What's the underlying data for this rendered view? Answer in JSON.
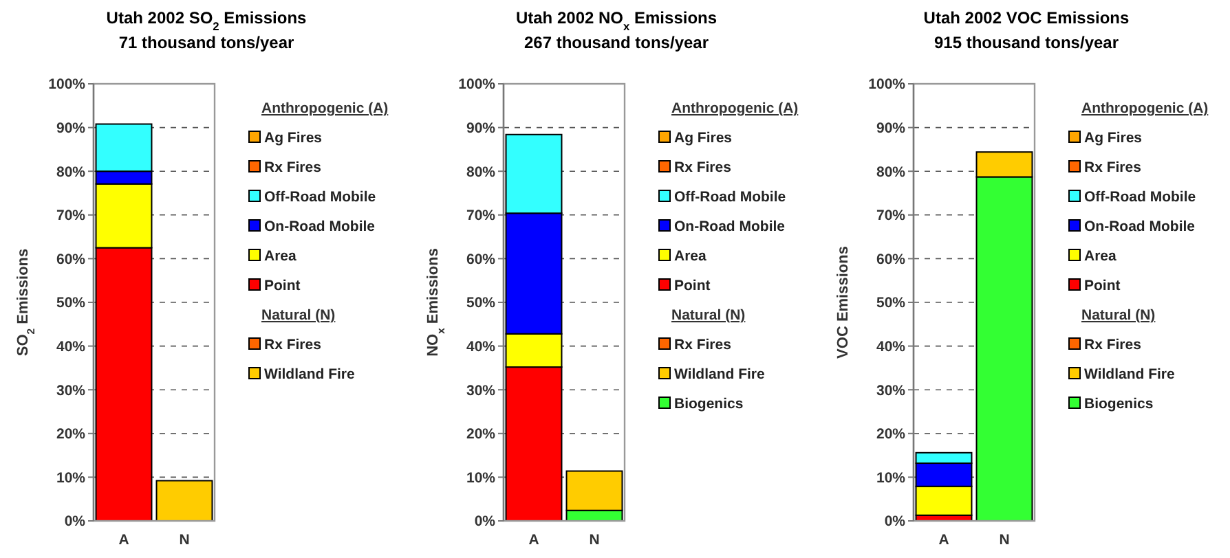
{
  "chart_data": [
    {
      "type": "bar",
      "title": "Utah 2002 SO$_{2}$ Emissions",
      "subtitle": "71 thousand tons/year",
      "ylabel": "SO$_{2}$ Emissions",
      "categories": [
        "A",
        "N"
      ],
      "stacked": true,
      "ylim": [
        0,
        100
      ],
      "yticks": [
        {
          "value": 0,
          "label": "0%"
        },
        {
          "value": 10,
          "label": "10%"
        },
        {
          "value": 20,
          "label": "20%"
        },
        {
          "value": 30,
          "label": "30%"
        },
        {
          "value": 40,
          "label": "40%"
        },
        {
          "value": 50,
          "label": "50%"
        },
        {
          "value": 60,
          "label": "60%"
        },
        {
          "value": 70,
          "label": "70%"
        },
        {
          "value": 80,
          "label": "80%"
        },
        {
          "value": 90,
          "label": "90%"
        },
        {
          "value": 100,
          "label": "100%"
        }
      ],
      "grid": "y",
      "legend": "right",
      "annotations": [
        "Anthropogenic (A)",
        "Natural (N)"
      ],
      "series": [
        {
          "name": "Point",
          "color": "#ff0000",
          "values": [
            62.5,
            null
          ]
        },
        {
          "name": "Area",
          "color": "#ffff00",
          "values": [
            14.6,
            null
          ]
        },
        {
          "name": "On-Road Mobile",
          "color": "#0000ff",
          "values": [
            2.9,
            null
          ]
        },
        {
          "name": "Off-Road Mobile",
          "color": "#33ffff",
          "values": [
            10.8,
            null
          ]
        },
        {
          "name": "Rx Fires",
          "color": "#ff6600",
          "values": [
            0,
            null
          ]
        },
        {
          "name": "Ag Fires",
          "color": "#ffa500",
          "values": [
            0,
            null
          ]
        },
        {
          "name": "Wildland Fire",
          "color": "#ffcc00",
          "values": [
            null,
            9.2
          ]
        },
        {
          "name": "Rx Fires",
          "color": "#ff6600",
          "values": [
            null,
            0
          ]
        }
      ]
    },
    {
      "type": "bar",
      "title": "Utah 2002 NO$_{x}$ Emissions",
      "subtitle": "267 thousand tons/year",
      "ylabel": "NO$_{x}$ Emissions",
      "categories": [
        "A",
        "N"
      ],
      "stacked": true,
      "ylim": [
        0,
        100
      ],
      "yticks": [
        {
          "value": 0,
          "label": "0%"
        },
        {
          "value": 10,
          "label": "10%"
        },
        {
          "value": 20,
          "label": "20%"
        },
        {
          "value": 30,
          "label": "30%"
        },
        {
          "value": 40,
          "label": "40%"
        },
        {
          "value": 50,
          "label": "50%"
        },
        {
          "value": 60,
          "label": "60%"
        },
        {
          "value": 70,
          "label": "70%"
        },
        {
          "value": 80,
          "label": "80%"
        },
        {
          "value": 90,
          "label": "90%"
        },
        {
          "value": 100,
          "label": "100%"
        }
      ],
      "grid": "y",
      "legend": "right",
      "annotations": [
        "Anthropogenic (A)",
        "Natural (N)"
      ],
      "series": [
        {
          "name": "Point",
          "color": "#ff0000",
          "values": [
            35.2,
            null
          ]
        },
        {
          "name": "Area",
          "color": "#ffff00",
          "values": [
            7.6,
            null
          ]
        },
        {
          "name": "On-Road Mobile",
          "color": "#0000ff",
          "values": [
            27.6,
            null
          ]
        },
        {
          "name": "Off-Road Mobile",
          "color": "#33ffff",
          "values": [
            18.0,
            null
          ]
        },
        {
          "name": "Rx Fires",
          "color": "#ff6600",
          "values": [
            0,
            null
          ]
        },
        {
          "name": "Ag Fires",
          "color": "#ffa500",
          "values": [
            0,
            null
          ]
        },
        {
          "name": "Biogenics",
          "color": "#33ff33",
          "values": [
            null,
            2.4
          ]
        },
        {
          "name": "Wildland Fire",
          "color": "#ffcc00",
          "values": [
            null,
            9.0
          ]
        },
        {
          "name": "Rx Fires",
          "color": "#ff6600",
          "values": [
            null,
            0
          ]
        }
      ]
    },
    {
      "type": "bar",
      "title": "Utah 2002 VOC Emissions",
      "subtitle": "915 thousand tons/year",
      "ylabel": "VOC Emissions",
      "categories": [
        "A",
        "N"
      ],
      "stacked": true,
      "ylim": [
        0,
        100
      ],
      "yticks": [
        {
          "value": 0,
          "label": "0%"
        },
        {
          "value": 10,
          "label": "10%"
        },
        {
          "value": 20,
          "label": "20%"
        },
        {
          "value": 30,
          "label": "30%"
        },
        {
          "value": 40,
          "label": "40%"
        },
        {
          "value": 50,
          "label": "50%"
        },
        {
          "value": 60,
          "label": "60%"
        },
        {
          "value": 70,
          "label": "70%"
        },
        {
          "value": 80,
          "label": "80%"
        },
        {
          "value": 90,
          "label": "90%"
        },
        {
          "value": 100,
          "label": "100%"
        }
      ],
      "grid": "y",
      "legend": "right",
      "annotations": [
        "Anthropogenic (A)",
        "Natural (N)"
      ],
      "series": [
        {
          "name": "Point",
          "color": "#ff0000",
          "values": [
            1.3,
            null
          ]
        },
        {
          "name": "Area",
          "color": "#ffff00",
          "values": [
            6.6,
            null
          ]
        },
        {
          "name": "On-Road Mobile",
          "color": "#0000ff",
          "values": [
            5.3,
            null
          ]
        },
        {
          "name": "Off-Road Mobile",
          "color": "#33ffff",
          "values": [
            2.4,
            null
          ]
        },
        {
          "name": "Rx Fires",
          "color": "#ff6600",
          "values": [
            0,
            null
          ]
        },
        {
          "name": "Ag Fires",
          "color": "#ffa500",
          "values": [
            0,
            null
          ]
        },
        {
          "name": "Biogenics",
          "color": "#33ff33",
          "values": [
            null,
            78.7
          ]
        },
        {
          "name": "Wildland Fire",
          "color": "#ffcc00",
          "values": [
            null,
            5.7
          ]
        },
        {
          "name": "Rx Fires",
          "color": "#ff6600",
          "values": [
            null,
            0
          ]
        }
      ]
    }
  ]
}
